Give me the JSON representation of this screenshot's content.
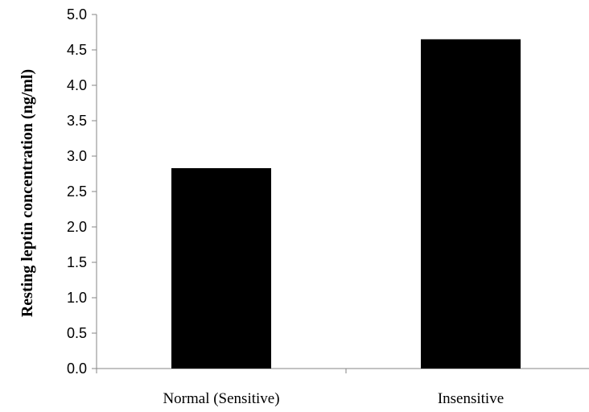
{
  "chart_data": {
    "type": "bar",
    "categories": [
      "Normal (Sensitive)",
      "Insensitive"
    ],
    "values": [
      2.83,
      4.65
    ],
    "title": "",
    "xlabel": "",
    "ylabel": "Resting leptin concentration (ng/ml)",
    "ylim": [
      0,
      5.0
    ],
    "yticks": [
      "0.0",
      "0.5",
      "1.0",
      "1.5",
      "2.0",
      "2.5",
      "3.0",
      "3.5",
      "4.0",
      "4.5",
      "5.0"
    ],
    "bar_color": "#000000",
    "grid": false,
    "legend": "none"
  }
}
